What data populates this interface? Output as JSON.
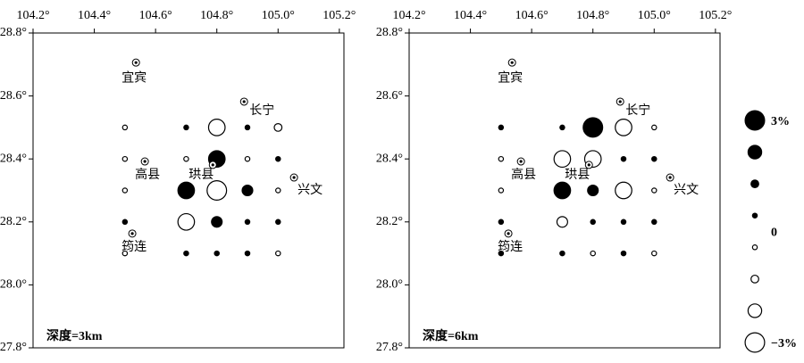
{
  "chart_data": [
    {
      "type": "bubble-map",
      "title": "深度=3km",
      "xlim": [
        104.2,
        105.215
      ],
      "ylim": [
        27.8,
        28.8
      ],
      "xticks": [
        {
          "value": 104.2,
          "label": "104.2°"
        },
        {
          "value": 104.4,
          "label": "104.4°"
        },
        {
          "value": 104.6,
          "label": "104.6°"
        },
        {
          "value": 104.8,
          "label": "104.8°"
        },
        {
          "value": 105.0,
          "label": "105.0°"
        },
        {
          "value": 105.2,
          "label": "105.2°"
        }
      ],
      "yticks": [
        {
          "value": 27.8,
          "label": "27.8°"
        },
        {
          "value": 28.0,
          "label": "28.0°"
        },
        {
          "value": 28.2,
          "label": "28.2°"
        },
        {
          "value": 28.4,
          "label": "28.4°"
        },
        {
          "value": 28.6,
          "label": "28.6°"
        },
        {
          "value": 28.8,
          "label": "28.8°"
        }
      ],
      "x": [
        104.5,
        104.7,
        104.8,
        104.9,
        105.0,
        104.5,
        104.7,
        104.8,
        104.9,
        105.0,
        104.5,
        104.7,
        104.8,
        104.9,
        105.0,
        104.5,
        104.7,
        104.8,
        104.9,
        105.0,
        104.5,
        104.7,
        104.8,
        104.9,
        105.0
      ],
      "y": [
        28.5,
        28.5,
        28.5,
        28.5,
        28.5,
        28.4,
        28.4,
        28.4,
        28.4,
        28.4,
        28.3,
        28.3,
        28.3,
        28.3,
        28.3,
        28.2,
        28.2,
        28.2,
        28.2,
        28.2,
        28.1,
        28.1,
        28.1,
        28.1,
        28.1
      ],
      "values": [
        -0.5,
        0.5,
        -2.5,
        0.5,
        -1,
        -0.5,
        -0.5,
        2.5,
        -0.5,
        0.5,
        -0.5,
        2.5,
        -3,
        1.5,
        -0.5,
        0.5,
        -2.5,
        1.5,
        0.5,
        0.5,
        -0.5,
        0.5,
        0.5,
        0.5,
        -0.5
      ],
      "places": [
        {
          "name": "宜宾",
          "x": 104.536,
          "y": 28.706
        },
        {
          "name": "长宁",
          "x": 104.889,
          "y": 28.582
        },
        {
          "name": "高县",
          "x": 104.565,
          "y": 28.392
        },
        {
          "name": "珙县",
          "x": 104.787,
          "y": 28.381
        },
        {
          "name": "兴文",
          "x": 105.052,
          "y": 28.341
        },
        {
          "name": "筠连",
          "x": 104.524,
          "y": 28.163
        }
      ]
    },
    {
      "type": "bubble-map",
      "title": "深度=6km",
      "xlim": [
        104.2,
        105.215
      ],
      "ylim": [
        27.8,
        28.8
      ],
      "xticks": [
        {
          "value": 104.2,
          "label": "104.2°"
        },
        {
          "value": 104.4,
          "label": "104.4°"
        },
        {
          "value": 104.6,
          "label": "104.6°"
        },
        {
          "value": 104.8,
          "label": "104.8°"
        },
        {
          "value": 105.0,
          "label": "105.0°"
        },
        {
          "value": 105.2,
          "label": "105.2°"
        }
      ],
      "yticks": [
        {
          "value": 27.8,
          "label": "27.8°"
        },
        {
          "value": 28.0,
          "label": "28.0°"
        },
        {
          "value": 28.2,
          "label": "28.2°"
        },
        {
          "value": 28.4,
          "label": "28.4°"
        },
        {
          "value": 28.6,
          "label": "28.6°"
        },
        {
          "value": 28.8,
          "label": "28.8°"
        }
      ],
      "x": [
        104.5,
        104.7,
        104.8,
        104.9,
        105.0,
        104.5,
        104.7,
        104.8,
        104.9,
        105.0,
        104.5,
        104.7,
        104.8,
        104.9,
        105.0,
        104.5,
        104.7,
        104.8,
        104.9,
        105.0,
        104.5,
        104.7,
        104.8,
        104.9,
        105.0
      ],
      "y": [
        28.5,
        28.5,
        28.5,
        28.5,
        28.5,
        28.4,
        28.4,
        28.4,
        28.4,
        28.4,
        28.3,
        28.3,
        28.3,
        28.3,
        28.3,
        28.2,
        28.2,
        28.2,
        28.2,
        28.2,
        28.1,
        28.1,
        28.1,
        28.1,
        28.1
      ],
      "values": [
        0.5,
        0.5,
        3,
        -2.5,
        -0.5,
        -0.5,
        -2.5,
        -2.5,
        0.5,
        0.5,
        -0.5,
        2.5,
        1.5,
        -2.5,
        -0.5,
        0.5,
        -1.5,
        0.5,
        0.5,
        0.5,
        0.5,
        0.5,
        -0.5,
        0.5,
        -0.5
      ],
      "places": [
        {
          "name": "宜宾",
          "x": 104.536,
          "y": 28.706
        },
        {
          "name": "长宁",
          "x": 104.889,
          "y": 28.582
        },
        {
          "name": "高县",
          "x": 104.565,
          "y": 28.392
        },
        {
          "name": "珙县",
          "x": 104.787,
          "y": 28.381
        },
        {
          "name": "兴文",
          "x": 105.052,
          "y": 28.341
        },
        {
          "name": "筠连",
          "x": 104.524,
          "y": 28.163
        }
      ],
      "size_legend": {
        "values": [
          3,
          2,
          1,
          0.5,
          -0.5,
          -1,
          -2,
          -3
        ],
        "labels": [
          {
            "value": 3,
            "label": "3%"
          },
          {
            "value": 0,
            "label": "0"
          },
          {
            "value": -3,
            "label": "−3%"
          }
        ]
      }
    }
  ]
}
